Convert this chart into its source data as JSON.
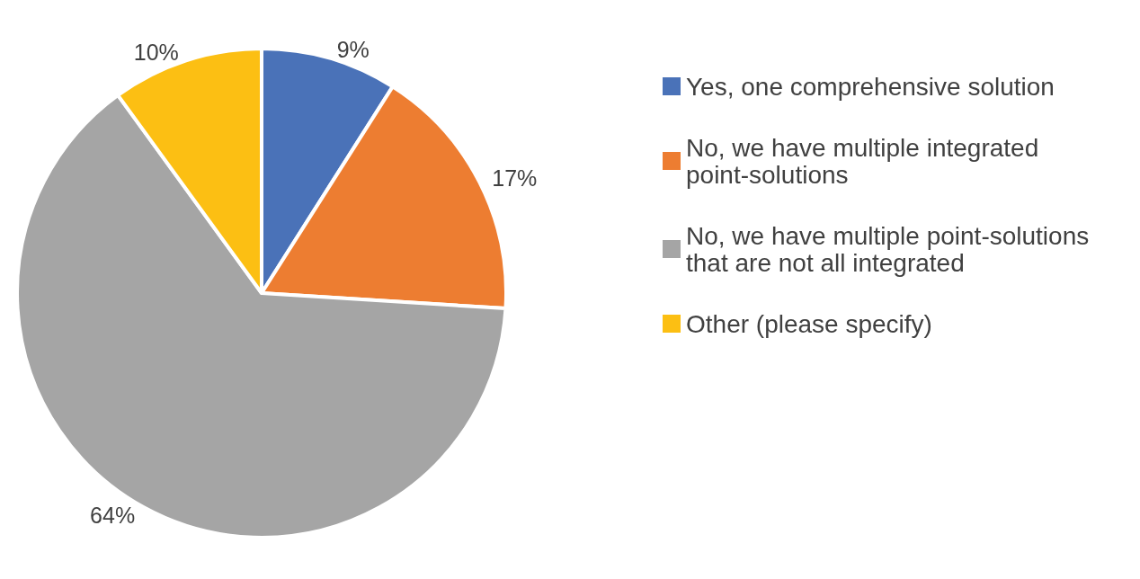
{
  "chart_data": {
    "type": "pie",
    "categories": [
      "Yes, one comprehensive solution",
      "No, we have multiple integrated point-solutions",
      "No, we have multiple point-solutions that are not all integrated",
      "Other (please specify)"
    ],
    "values": [
      9,
      17,
      64,
      10
    ],
    "colors": [
      "#4a72b8",
      "#ed7d31",
      "#a5a5a5",
      "#fcbf13"
    ],
    "value_labels": [
      "9%",
      "17%",
      "64%",
      "10%"
    ],
    "legend": "right"
  }
}
